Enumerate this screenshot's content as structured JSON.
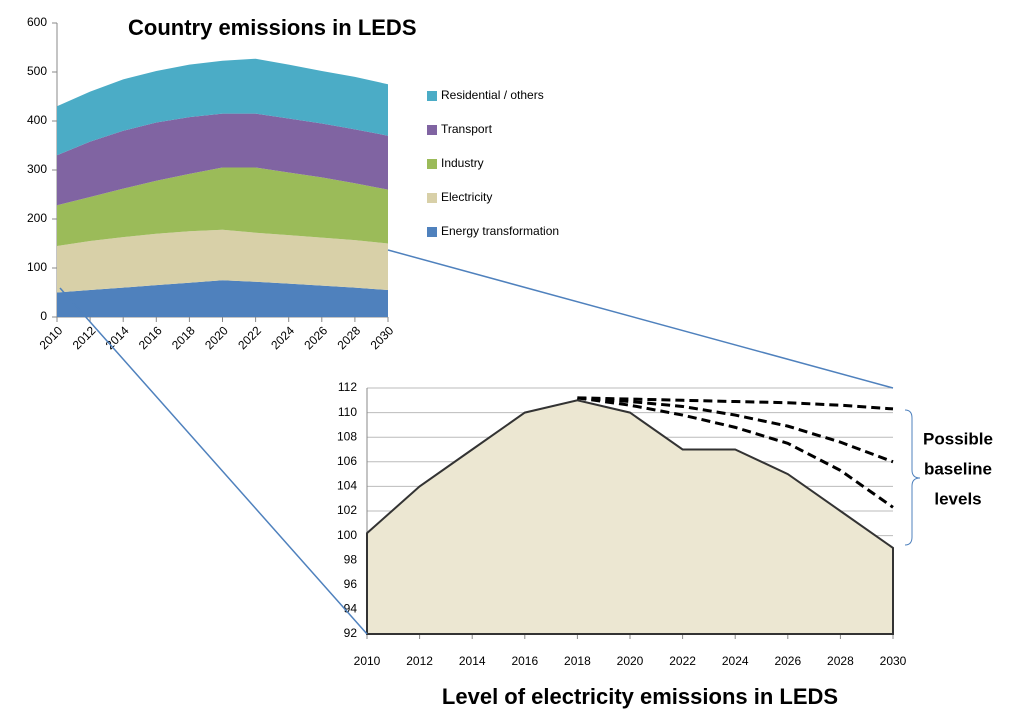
{
  "chart_data": [
    {
      "type": "area",
      "stacked": true,
      "title": "Country emissions in LEDS",
      "x": [
        2010,
        2012,
        2014,
        2016,
        2018,
        2020,
        2022,
        2024,
        2026,
        2028,
        2030
      ],
      "xlim": [
        2010,
        2030
      ],
      "ylim": [
        0,
        600
      ],
      "yticks": [
        0,
        100,
        200,
        300,
        400,
        500,
        600
      ],
      "series": [
        {
          "name": "Energy transformation",
          "color": "#4f81bd",
          "values": [
            50,
            55,
            60,
            65,
            70,
            75,
            72,
            68,
            64,
            60,
            55
          ]
        },
        {
          "name": "Electricity",
          "color": "#d8d0a8",
          "values": [
            95,
            100,
            103,
            105,
            105,
            103,
            100,
            99,
            98,
            97,
            95
          ]
        },
        {
          "name": "Industry",
          "color": "#9bbb59",
          "values": [
            83,
            90,
            99,
            108,
            117,
            127,
            133,
            128,
            123,
            116,
            110
          ]
        },
        {
          "name": "Transport",
          "color": "#8064a2",
          "values": [
            102,
            113,
            118,
            119,
            116,
            110,
            110,
            110,
            110,
            110,
            110
          ]
        },
        {
          "name": "Residential / others",
          "color": "#4bacc6",
          "values": [
            100,
            102,
            105,
            105,
            107,
            108,
            112,
            110,
            107,
            107,
            105
          ]
        }
      ]
    },
    {
      "type": "area",
      "title": "Level of electricity emissions in LEDS",
      "annotation": [
        "Possible",
        "baseline",
        "levels"
      ],
      "x": [
        2010,
        2012,
        2014,
        2016,
        2018,
        2020,
        2022,
        2024,
        2026,
        2028,
        2030
      ],
      "xlim": [
        2010,
        2030
      ],
      "ylim": [
        92,
        112
      ],
      "yticks": [
        92,
        94,
        96,
        98,
        100,
        102,
        104,
        106,
        108,
        110,
        112
      ],
      "grid": true,
      "series": [
        {
          "color": "#ece7d2",
          "values": [
            100.2,
            104,
            107,
            110,
            111,
            110,
            107,
            107,
            105,
            102,
            99
          ]
        },
        {
          "color": "#000000",
          "dashed": true,
          "values": [
            null,
            null,
            null,
            null,
            111.2,
            111.1,
            111,
            110.9,
            110.8,
            110.6,
            110.3
          ]
        },
        {
          "color": "#000000",
          "dashed": true,
          "values": [
            null,
            null,
            null,
            null,
            111.2,
            110.9,
            110.5,
            109.8,
            108.9,
            107.6,
            106
          ]
        },
        {
          "color": "#000000",
          "dashed": true,
          "values": [
            null,
            null,
            null,
            null,
            111.2,
            110.6,
            109.8,
            108.8,
            107.5,
            105.3,
            102.3
          ]
        }
      ]
    }
  ]
}
